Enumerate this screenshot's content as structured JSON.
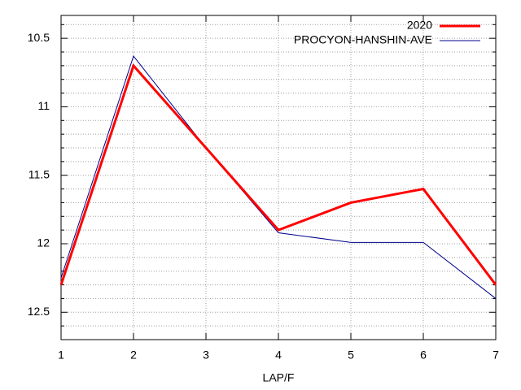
{
  "chart_data": {
    "type": "line",
    "x_label": "LAP/F",
    "x": [
      1,
      2,
      3,
      4,
      5,
      6,
      7
    ],
    "series": [
      {
        "name": "2020",
        "color": "#ff0000",
        "width": 3,
        "values": [
          12.3,
          10.7,
          11.3,
          11.9,
          11.7,
          11.6,
          12.3
        ]
      },
      {
        "name": "PROCYON-HANSHIN-AVE",
        "color": "#00008b",
        "width": 1,
        "values": [
          12.25,
          10.63,
          11.3,
          11.92,
          11.99,
          11.99,
          12.4
        ]
      }
    ],
    "xlim": [
      1,
      7
    ],
    "xticks": [
      1,
      2,
      3,
      4,
      5,
      6,
      7
    ],
    "ylim": [
      12.7,
      10.333
    ],
    "yticks": [
      10.5,
      11,
      11.5,
      12,
      12.5
    ],
    "grid": true,
    "minor_grid": true,
    "legend": "top-right"
  }
}
